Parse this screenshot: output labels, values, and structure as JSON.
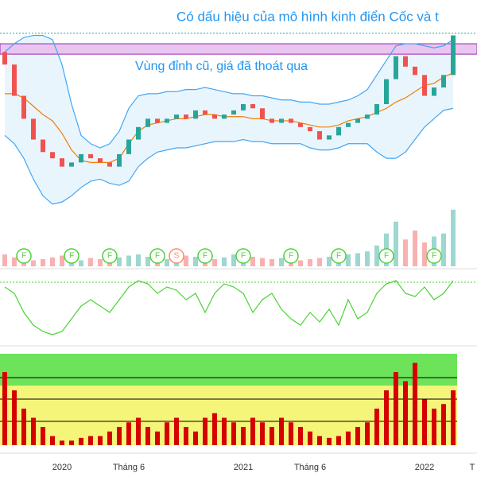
{
  "chart_data": {
    "type": "candlestick",
    "annotations": [
      "Có dấu hiệu của mô hình kinh điển Cốc và t",
      "Vùng đỉnh cũ, giá đã thoát qua"
    ],
    "categories": [
      null,
      null,
      null,
      null,
      null,
      null,
      "2020",
      null,
      null,
      null,
      null,
      null,
      null,
      "Tháng 6",
      null,
      null,
      null,
      null,
      null,
      null,
      null,
      null,
      null,
      null,
      null,
      "2021",
      null,
      null,
      null,
      null,
      null,
      null,
      "Tháng 6",
      null,
      null,
      null,
      null,
      null,
      null,
      null,
      null,
      null,
      null,
      null,
      "2022",
      null,
      null,
      null,
      null,
      "T"
    ],
    "ylim": [
      0,
      100
    ],
    "up_color": "#26a69a",
    "down_color": "#ef5350",
    "open": [
      75,
      69,
      54,
      43,
      33,
      27,
      24,
      20,
      22,
      26,
      24,
      22,
      20,
      26,
      33,
      39,
      43,
      41,
      43,
      45,
      43,
      47,
      45,
      43,
      45,
      47,
      50,
      48,
      43,
      41,
      43,
      41,
      39,
      37,
      33,
      35,
      39,
      41,
      43,
      45,
      50,
      62,
      73,
      68,
      64,
      54,
      58,
      64,
      null,
      null
    ],
    "close": [
      69,
      54,
      43,
      33,
      27,
      24,
      20,
      22,
      26,
      24,
      22,
      20,
      26,
      33,
      39,
      43,
      41,
      43,
      45,
      43,
      47,
      45,
      43,
      45,
      47,
      50,
      48,
      43,
      41,
      43,
      41,
      39,
      37,
      33,
      35,
      39,
      41,
      43,
      45,
      50,
      62,
      73,
      68,
      64,
      54,
      58,
      64,
      83,
      null,
      null
    ],
    "bands": {
      "color": "#42a5f5",
      "middle_color": "#f57c00",
      "upper": [
        75,
        79,
        82,
        83,
        83,
        81,
        69,
        50,
        35,
        31,
        29,
        31,
        37,
        48,
        54,
        55,
        55,
        56,
        56,
        57,
        57,
        58,
        57,
        56,
        55,
        55,
        54,
        54,
        53,
        52,
        52,
        51,
        51,
        50,
        50,
        51,
        52,
        54,
        57,
        64,
        71,
        78,
        79,
        79,
        78,
        77,
        78,
        81,
        null,
        null
      ],
      "middle": [
        55,
        55,
        53,
        49,
        45,
        42,
        36,
        28,
        23,
        22,
        22,
        22,
        24,
        31,
        37,
        40,
        41,
        42,
        43,
        43,
        44,
        45,
        45,
        44,
        44,
        44,
        43,
        43,
        42,
        42,
        42,
        41,
        40,
        39,
        39,
        40,
        42,
        43,
        44,
        46,
        48,
        51,
        53,
        56,
        59,
        60,
        63,
        65,
        null,
        null
      ],
      "lower": [
        35,
        31,
        24,
        14,
        6,
        2,
        3,
        6,
        10,
        13,
        14,
        12,
        11,
        13,
        20,
        24,
        27,
        28,
        29,
        29,
        30,
        31,
        32,
        32,
        32,
        33,
        32,
        32,
        31,
        31,
        31,
        31,
        29,
        28,
        28,
        29,
        31,
        31,
        31,
        27,
        24,
        24,
        27,
        33,
        39,
        43,
        47,
        48,
        null,
        null
      ]
    },
    "zone": [
      74,
      79
    ],
    "resistance": 84,
    "volume": [
      20,
      15,
      12,
      10,
      12,
      15,
      18,
      12,
      10,
      14,
      12,
      10,
      15,
      18,
      20,
      16,
      14,
      12,
      15,
      18,
      16,
      14,
      12,
      15,
      20,
      22,
      16,
      14,
      12,
      14,
      12,
      10,
      12,
      14,
      16,
      18,
      20,
      22,
      25,
      35,
      55,
      75,
      45,
      60,
      40,
      50,
      55,
      95,
      null,
      null
    ],
    "markers": [
      {
        "index": 2,
        "label": "F"
      },
      {
        "index": 7,
        "label": "F"
      },
      {
        "index": 11,
        "label": "F"
      },
      {
        "index": 16,
        "label": "F"
      },
      {
        "index": 18,
        "label": "S"
      },
      {
        "index": 21,
        "label": "F"
      },
      {
        "index": 25,
        "label": "F"
      },
      {
        "index": 30,
        "label": "F"
      },
      {
        "index": 35,
        "label": "F"
      },
      {
        "index": 40,
        "label": "F"
      },
      {
        "index": 45,
        "label": "F"
      }
    ],
    "oscillator": {
      "color": "#4cd137",
      "ylim": [
        -50,
        50
      ],
      "values": [
        30,
        20,
        -10,
        -30,
        -40,
        -45,
        -40,
        -20,
        0,
        10,
        0,
        -10,
        10,
        30,
        40,
        35,
        20,
        30,
        25,
        10,
        20,
        -10,
        20,
        35,
        30,
        20,
        -10,
        10,
        20,
        -5,
        -20,
        -30,
        -10,
        -25,
        -5,
        -30,
        10,
        -20,
        -10,
        20,
        35,
        40,
        20,
        15,
        30,
        10,
        20,
        40,
        null,
        null
      ]
    },
    "strength": {
      "color": "#d50000",
      "ylim": [
        0,
        100
      ],
      "values": [
        80,
        60,
        40,
        30,
        20,
        10,
        5,
        5,
        8,
        10,
        10,
        15,
        20,
        25,
        30,
        20,
        15,
        25,
        30,
        20,
        15,
        30,
        35,
        30,
        25,
        20,
        30,
        25,
        20,
        30,
        25,
        20,
        15,
        10,
        8,
        10,
        15,
        20,
        25,
        40,
        60,
        80,
        70,
        90,
        50,
        40,
        45,
        60,
        null,
        null
      ]
    }
  }
}
